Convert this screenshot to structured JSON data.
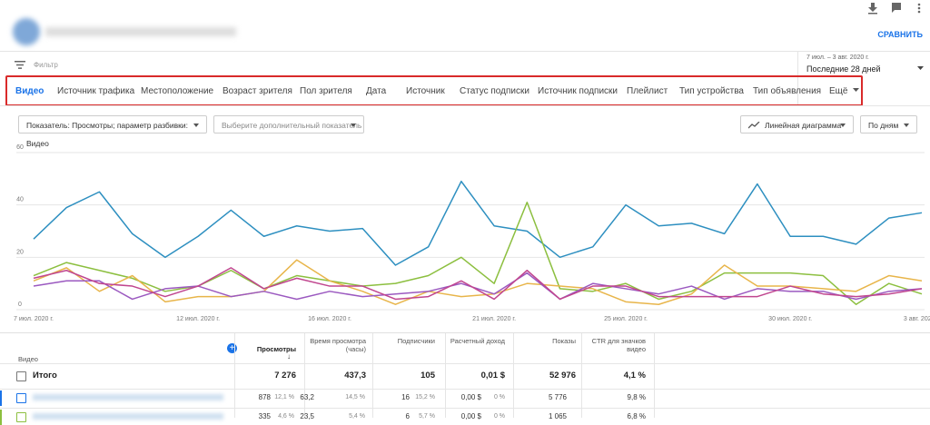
{
  "header": {
    "compare": "СРАВНИТЬ",
    "date_range": "7 июл. – 3 авг. 2020 г.",
    "period": "Последние 28 дней",
    "filter": "Фильтр"
  },
  "tabs": [
    "Видео",
    "Источник трафика",
    "Местоположение",
    "Возраст зрителя",
    "Пол зрителя",
    "Дата",
    "Источник",
    "Статус подписки",
    "Источник подписки",
    "Плейлист",
    "Тип устройства",
    "Тип объявления",
    "Ещё"
  ],
  "controls": {
    "metric": "Показатель: Просмотры; параметр разбивки: Видео",
    "extra_metric": "Выберите дополнительный показатель",
    "chart_type": "Линейная диаграмма",
    "granularity": "По дням"
  },
  "chart_data": {
    "type": "line",
    "categories": [
      "7 июл. 2020 г.",
      null,
      null,
      null,
      null,
      "12 июл. 2020 г.",
      null,
      null,
      null,
      "16 июл. 2020 г.",
      null,
      null,
      null,
      null,
      "21 июл. 2020 г.",
      null,
      null,
      null,
      "25 июл. 2020 г.",
      null,
      null,
      null,
      null,
      "30 июл. 2020 г.",
      null,
      null,
      null,
      "3 авг. 2020 г."
    ],
    "ylim": [
      0,
      60
    ],
    "yticks": [
      0,
      20,
      40,
      60
    ],
    "grid": true,
    "series": [
      {
        "color": "#2d8fc0",
        "values": [
          27,
          39,
          45,
          29,
          20,
          28,
          38,
          28,
          32,
          30,
          31,
          17,
          24,
          49,
          32,
          30,
          20,
          24,
          40,
          32,
          33,
          29,
          48,
          28,
          28,
          25,
          35,
          37
        ]
      },
      {
        "color": "#8cbf3f",
        "values": [
          13,
          18,
          15,
          12,
          7,
          9,
          15,
          8,
          13,
          11,
          9,
          10,
          13,
          20,
          10,
          41,
          8,
          7,
          10,
          4,
          7,
          14,
          14,
          14,
          13,
          2,
          10,
          6
        ]
      },
      {
        "color": "#e8b54a",
        "values": [
          11,
          16,
          7,
          13,
          3,
          5,
          5,
          7,
          19,
          11,
          7,
          2,
          7,
          5,
          6,
          10,
          9,
          8,
          3,
          2,
          6,
          17,
          9,
          9,
          8,
          7,
          13,
          11
        ]
      },
      {
        "color": "#9b59c0",
        "values": [
          9,
          11,
          11,
          4,
          8,
          9,
          5,
          7,
          4,
          7,
          5,
          6,
          7,
          10,
          6,
          14,
          4,
          10,
          8,
          6,
          9,
          4,
          8,
          7,
          7,
          4,
          7,
          8
        ]
      },
      {
        "color": "#c0468f",
        "values": [
          12,
          15,
          10,
          9,
          5,
          9,
          16,
          8,
          12,
          9,
          9,
          4,
          5,
          11,
          4,
          15,
          4,
          9,
          9,
          5,
          5,
          5,
          5,
          9,
          6,
          5,
          6,
          8
        ]
      }
    ]
  },
  "table": {
    "header": [
      "Видео",
      "Просмотры",
      "Время просмотра (часы)",
      "Подписчики",
      "Расчетный доход",
      "Показы",
      "CTR для значков видео"
    ],
    "total": [
      "Итого",
      "7 276",
      "437,3",
      "105",
      "0,01 $",
      "52 976",
      "4,1 %"
    ],
    "rows": [
      [
        "878",
        "12,1 %",
        "63,2",
        "14,5 %",
        "16",
        "15,2 %",
        "0,00 $",
        "0 %",
        "5 776",
        "9,8 %"
      ],
      [
        "335",
        "4,6 %",
        "23,5",
        "5,4 %",
        "6",
        "5,7 %",
        "0,00 $",
        "0 %",
        "1 065",
        "6,8 %"
      ]
    ]
  }
}
